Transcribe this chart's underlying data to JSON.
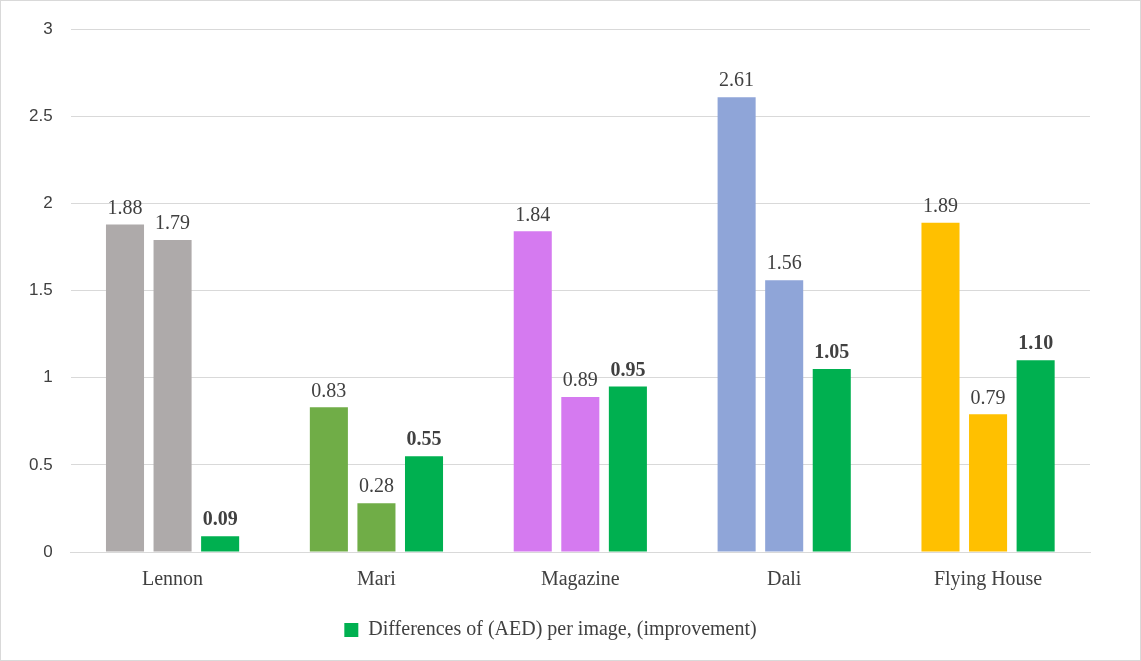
{
  "chart_data": {
    "type": "bar",
    "categories": [
      "Lennon",
      "Mari",
      "Magazine",
      "Dali",
      "Flying House"
    ],
    "series": [
      {
        "colors": [
          "#aeaaaa",
          "#70ad47",
          "#d57af0",
          "#8fa5d8",
          "#ffc000"
        ],
        "values": [
          1.88,
          0.83,
          1.84,
          2.61,
          1.89
        ],
        "value_labels": [
          "1.88",
          "0.83",
          "1.84",
          "2.61",
          "1.89"
        ]
      },
      {
        "colors": [
          "#aeaaaa",
          "#70ad47",
          "#d57af0",
          "#8fa5d8",
          "#ffc000"
        ],
        "values": [
          1.79,
          0.28,
          0.89,
          1.56,
          0.79
        ],
        "value_labels": [
          "1.79",
          "0.28",
          "0.89",
          "1.56",
          "0.79"
        ]
      },
      {
        "name": "Differences of (AED) per image, (improvement)",
        "color": "#00b050",
        "values": [
          0.09,
          0.55,
          0.95,
          1.05,
          1.1
        ],
        "value_labels": [
          "0.09",
          "0.55",
          "0.95",
          "1.05",
          "1.10"
        ]
      }
    ],
    "ylim": [
      0,
      3
    ],
    "yticks": [
      0,
      0.5,
      1,
      1.5,
      2,
      2.5,
      3
    ],
    "grid": "y",
    "legend": "bottom"
  }
}
